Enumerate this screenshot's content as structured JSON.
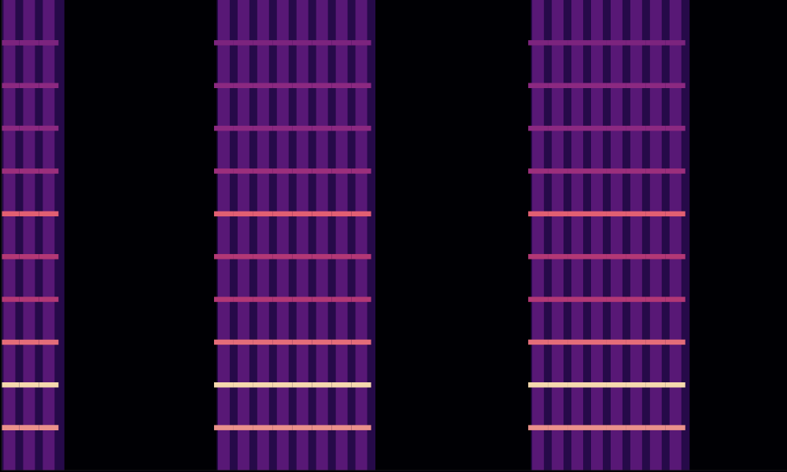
{
  "chart_data": {
    "type": "heatmap",
    "xlim": [
      0,
      100
    ],
    "ylim": [
      0,
      11
    ],
    "zlim": [
      0,
      1
    ],
    "tick_labels": false,
    "grid": false,
    "segments": [
      {
        "start": 0,
        "end": 8,
        "value": 0.16
      },
      {
        "start": 27.4,
        "end": 47.6,
        "value": 0.16
      },
      {
        "start": 67.4,
        "end": 87.6,
        "value": 0.16
      }
    ],
    "x": [
      1.0,
      3.5,
      6.0,
      28.3,
      30.8,
      33.3,
      35.8,
      38.3,
      40.8,
      43.3,
      45.8,
      68.3,
      70.8,
      73.3,
      75.8,
      78.3,
      80.8,
      83.3,
      85.8
    ],
    "pulse_values": [
      0.34,
      0.34,
      0.34,
      0.34,
      0.34,
      0.34,
      0.34,
      0.34,
      0.34,
      0.34,
      0.34,
      0.34,
      0.34,
      0.34,
      0.34,
      0.34,
      0.34,
      0.34,
      0.34
    ],
    "y": [
      1,
      2,
      3,
      4,
      5,
      6,
      7,
      8,
      9,
      10
    ],
    "values": [
      [
        0.85,
        0.85,
        0.85,
        0.85,
        0.85,
        0.85,
        0.85,
        0.85,
        0.85,
        0.85,
        0.85,
        0.85,
        0.85,
        0.85,
        0.85,
        0.85,
        0.85,
        0.85,
        0.85
      ],
      [
        0.95,
        0.95,
        0.95,
        0.95,
        0.95,
        0.95,
        0.95,
        0.95,
        0.95,
        0.95,
        0.95,
        0.95,
        0.95,
        0.95,
        0.95,
        0.95,
        0.95,
        0.95,
        0.95
      ],
      [
        0.8,
        0.8,
        0.8,
        0.8,
        0.8,
        0.8,
        0.8,
        0.8,
        0.8,
        0.8,
        0.8,
        0.8,
        0.8,
        0.8,
        0.8,
        0.8,
        0.8,
        0.8,
        0.8
      ],
      [
        0.62,
        0.62,
        0.62,
        0.62,
        0.62,
        0.62,
        0.62,
        0.62,
        0.62,
        0.62,
        0.62,
        0.62,
        0.62,
        0.62,
        0.62,
        0.62,
        0.62,
        0.62,
        0.62
      ],
      [
        0.62,
        0.62,
        0.62,
        0.62,
        0.62,
        0.62,
        0.62,
        0.62,
        0.62,
        0.62,
        0.62,
        0.62,
        0.62,
        0.62,
        0.62,
        0.62,
        0.62,
        0.62,
        0.62
      ],
      [
        0.78,
        0.78,
        0.78,
        0.78,
        0.78,
        0.78,
        0.78,
        0.78,
        0.78,
        0.78,
        0.78,
        0.78,
        0.78,
        0.78,
        0.78,
        0.78,
        0.78,
        0.78,
        0.78
      ],
      [
        0.55,
        0.55,
        0.55,
        0.55,
        0.55,
        0.55,
        0.55,
        0.55,
        0.55,
        0.55,
        0.55,
        0.55,
        0.55,
        0.55,
        0.55,
        0.55,
        0.55,
        0.55,
        0.55
      ],
      [
        0.5,
        0.5,
        0.5,
        0.5,
        0.5,
        0.5,
        0.5,
        0.5,
        0.5,
        0.5,
        0.5,
        0.5,
        0.5,
        0.5,
        0.5,
        0.5,
        0.5,
        0.5,
        0.5
      ],
      [
        0.5,
        0.5,
        0.5,
        0.5,
        0.5,
        0.5,
        0.5,
        0.5,
        0.5,
        0.5,
        0.5,
        0.5,
        0.5,
        0.5,
        0.5,
        0.5,
        0.5,
        0.5,
        0.5
      ],
      [
        0.45,
        0.45,
        0.45,
        0.45,
        0.45,
        0.45,
        0.45,
        0.45,
        0.45,
        0.45,
        0.45,
        0.45,
        0.45,
        0.45,
        0.45,
        0.45,
        0.45,
        0.45,
        0.45
      ]
    ]
  }
}
